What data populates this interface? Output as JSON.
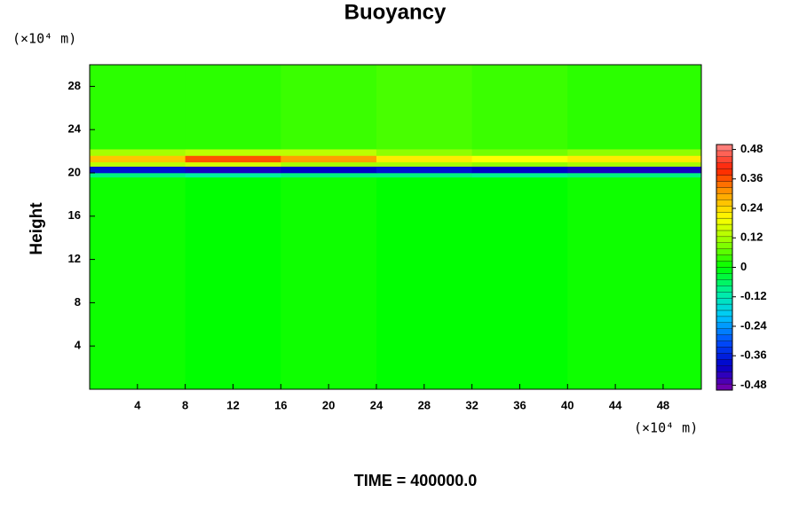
{
  "chart_data": {
    "type": "heatmap",
    "title": "Buoyancy",
    "y_label": "Height",
    "y_unit": "(×10⁴ m)",
    "x_unit": "(×10⁴ m)",
    "footer": "TIME = 400000.0",
    "xlim": [
      0,
      51.2
    ],
    "ylim": [
      0,
      30
    ],
    "xticks": [
      4,
      8,
      12,
      16,
      20,
      24,
      28,
      32,
      36,
      40,
      44,
      48
    ],
    "yticks": [
      4,
      8,
      12,
      16,
      20,
      24,
      28
    ],
    "xbins": [
      0,
      8,
      16,
      24,
      32,
      40,
      51.2
    ],
    "ybins": [
      0,
      19.6,
      20.0,
      20.6,
      21.0,
      21.6,
      22.2,
      30
    ],
    "z": [
      [
        0.01,
        0.0,
        0.01,
        0.0,
        0.0,
        0.01
      ],
      [
        -0.08,
        -0.1,
        -0.08,
        -0.08,
        -0.09,
        -0.08
      ],
      [
        -0.38,
        -0.42,
        -0.4,
        -0.38,
        -0.4,
        -0.42
      ],
      [
        0.14,
        0.16,
        0.12,
        0.12,
        0.1,
        0.12
      ],
      [
        0.26,
        0.36,
        0.3,
        0.22,
        0.2,
        0.22
      ],
      [
        0.12,
        0.14,
        0.14,
        0.1,
        0.08,
        0.1
      ],
      [
        0.03,
        0.03,
        0.04,
        0.05,
        0.04,
        0.03
      ]
    ],
    "clim": [
      -0.5,
      0.5
    ],
    "cticks": [
      -0.48,
      -0.36,
      -0.24,
      -0.12,
      0,
      0.12,
      0.24,
      0.36,
      0.48
    ],
    "colormap": [
      "#7a00a8",
      "#0000c8",
      "#0050ff",
      "#00c8ff",
      "#00f0a0",
      "#00ff00",
      "#90ff00",
      "#ffff00",
      "#ffa000",
      "#ff2000",
      "#ff8a8a"
    ]
  }
}
